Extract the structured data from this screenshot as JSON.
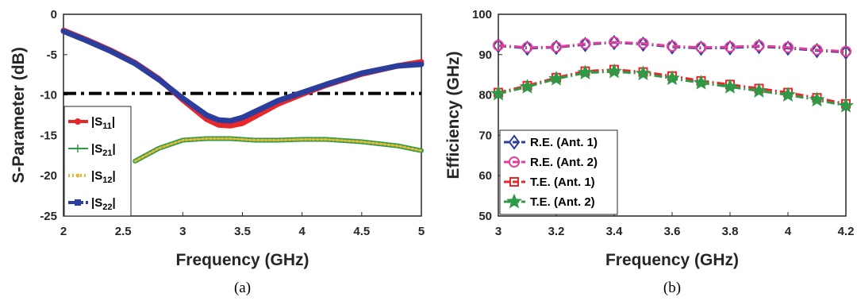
{
  "chart_data": [
    {
      "type": "line",
      "panel": "a",
      "caption": "(a)",
      "xlabel": "Frequency (GHz)",
      "ylabel": "S-Parameter (dB)",
      "xlim": [
        2,
        5
      ],
      "ylim": [
        -25,
        0
      ],
      "xticks": [
        "2",
        "2.5",
        "3",
        "3.5",
        "4",
        "4.5",
        "5"
      ],
      "yticks": [
        "0",
        "-5",
        "-10",
        "-15",
        "-20",
        "-25"
      ],
      "grid": false,
      "legend_position": "bottom-left",
      "x": [
        2.0,
        2.2,
        2.4,
        2.6,
        2.8,
        3.0,
        3.2,
        3.3,
        3.4,
        3.5,
        3.6,
        3.8,
        4.0,
        4.2,
        4.5,
        4.8,
        5.0
      ],
      "reference_line": {
        "y": -9.8,
        "style": "dash-dot",
        "color": "#000000"
      },
      "series": [
        {
          "name_parts": [
            "|S",
            "11",
            "|"
          ],
          "color": "#e8272b",
          "width": 7,
          "dash": "",
          "values": [
            -2.0,
            -3.2,
            -4.5,
            -6.0,
            -8.0,
            -10.6,
            -13.0,
            -13.7,
            -13.8,
            -13.5,
            -12.7,
            -11.1,
            -9.9,
            -8.8,
            -7.4,
            -6.4,
            -5.9
          ]
        },
        {
          "name_parts": [
            "|S",
            "21",
            "|"
          ],
          "color": "#2e9a48",
          "width": 6,
          "dash": "",
          "values": [
            null,
            null,
            null,
            -18.2,
            -16.6,
            -15.6,
            -15.4,
            -15.4,
            -15.4,
            -15.5,
            -15.6,
            -15.6,
            -15.5,
            -15.5,
            -15.8,
            -16.3,
            -16.9
          ]
        },
        {
          "name_parts": [
            "|S",
            "12",
            "|"
          ],
          "color": "#e3b93a",
          "width": 3,
          "dash": "2 3",
          "values": [
            null,
            null,
            null,
            -18.2,
            -16.6,
            -15.6,
            -15.4,
            -15.4,
            -15.4,
            -15.5,
            -15.6,
            -15.6,
            -15.5,
            -15.5,
            -15.8,
            -16.3,
            -16.9
          ]
        },
        {
          "name_parts": [
            "|S",
            "22",
            "|"
          ],
          "color": "#2c3e9d",
          "width": 7,
          "dash": "",
          "values": [
            -2.1,
            -3.3,
            -4.6,
            -6.1,
            -8.1,
            -10.4,
            -12.5,
            -13.1,
            -13.2,
            -12.8,
            -12.1,
            -10.7,
            -9.7,
            -8.7,
            -7.3,
            -6.4,
            -6.2
          ]
        }
      ]
    },
    {
      "type": "line",
      "panel": "b",
      "caption": "(b)",
      "xlabel": "Frequency (GHz)",
      "ylabel": "Efficiency (GHz)",
      "xlim": [
        3,
        4.2
      ],
      "ylim": [
        50,
        100
      ],
      "xticks": [
        "3",
        "3.2",
        "3.4",
        "3.6",
        "3.8",
        "4",
        "4.2"
      ],
      "yticks": [
        "100",
        "90",
        "80",
        "70",
        "60",
        "50"
      ],
      "grid": false,
      "legend_position": "bottom-left",
      "x": [
        3.0,
        3.1,
        3.2,
        3.3,
        3.4,
        3.5,
        3.6,
        3.7,
        3.8,
        3.9,
        4.0,
        4.1,
        4.2
      ],
      "series": [
        {
          "name": "R.E. (Ant. 1)",
          "color": "#2c3e9d",
          "marker": "diamond",
          "dash": "10 4 2 4",
          "values": [
            92.2,
            91.6,
            91.8,
            92.5,
            93.0,
            92.6,
            91.9,
            91.6,
            91.7,
            92.0,
            91.6,
            91.0,
            90.6
          ]
        },
        {
          "name": "R.E. (Ant. 2)",
          "color": "#e0409a",
          "marker": "circle",
          "dash": "10 4 2 4",
          "values": [
            92.3,
            91.8,
            91.9,
            92.7,
            93.1,
            92.8,
            92.1,
            91.8,
            91.9,
            92.2,
            91.8,
            91.2,
            90.8
          ]
        },
        {
          "name": "T.E. (Ant. 1)",
          "color": "#e8272b",
          "marker": "square",
          "dash": "10 4 2 4",
          "values": [
            80.6,
            82.3,
            84.3,
            85.9,
            86.3,
            85.7,
            84.7,
            83.5,
            82.6,
            81.6,
            80.6,
            79.3,
            77.8
          ]
        },
        {
          "name": "T.E. (Ant. 2)",
          "color": "#2e9a48",
          "marker": "star",
          "dash": "10 4 2 4",
          "values": [
            80.3,
            82.0,
            84.0,
            85.5,
            85.8,
            85.3,
            84.1,
            83.0,
            82.0,
            81.0,
            80.0,
            78.8,
            77.3
          ]
        }
      ]
    }
  ]
}
